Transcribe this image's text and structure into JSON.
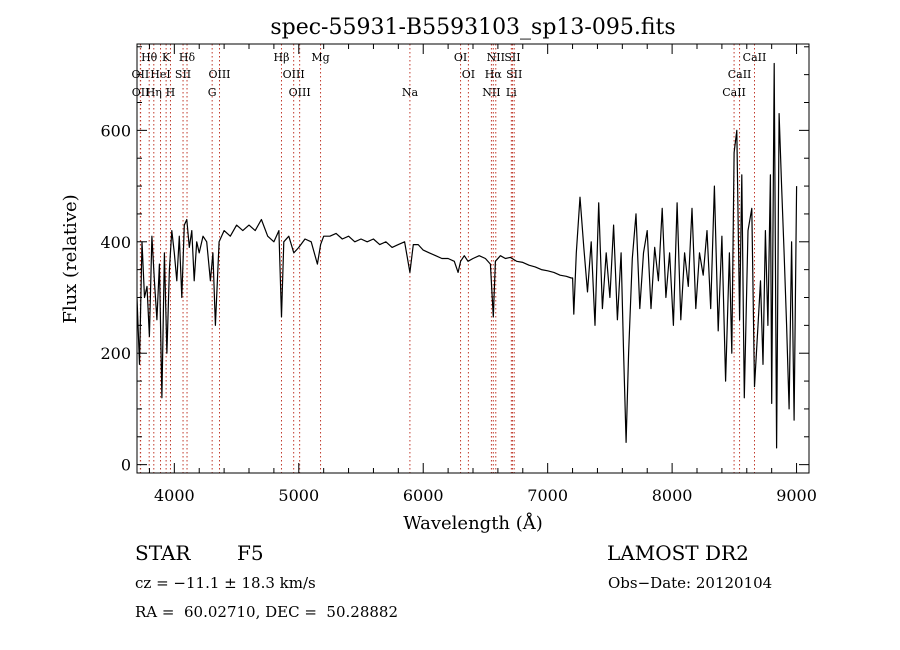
{
  "chart_data": {
    "type": "line",
    "title": "spec-55931-B5593103_sp13-095.fits",
    "xlabel": "Wavelength (Å)",
    "ylabel": "Flux (relative)",
    "xlim": [
      3700,
      9100
    ],
    "ylim": [
      -15,
      755
    ],
    "xticks": [
      4000,
      5000,
      6000,
      7000,
      8000,
      9000
    ],
    "yticks": [
      0,
      200,
      400,
      600
    ],
    "line_markers": [
      {
        "label": "Hθ",
        "wavelength": 3798,
        "row": 0
      },
      {
        "label": "K",
        "wavelength": 3934,
        "row": 0
      },
      {
        "label": "Hδ",
        "wavelength": 4102,
        "row": 0
      },
      {
        "label": "Hβ",
        "wavelength": 4861,
        "row": 0
      },
      {
        "label": "Mg",
        "wavelength": 5175,
        "row": 0
      },
      {
        "label": "OI",
        "wavelength": 6300,
        "row": 0
      },
      {
        "label": "NII",
        "wavelength": 6583,
        "row": 0
      },
      {
        "label": "SII",
        "wavelength": 6717,
        "row": 0
      },
      {
        "label": "CaII",
        "wavelength": 8662,
        "row": 0
      },
      {
        "label": "OII",
        "wavelength": 3727,
        "row": 1
      },
      {
        "label": "HeI",
        "wavelength": 3889,
        "row": 1
      },
      {
        "label": "SII",
        "wavelength": 4070,
        "row": 1
      },
      {
        "label": "OIII",
        "wavelength": 4363,
        "row": 1
      },
      {
        "label": "OIII",
        "wavelength": 4959,
        "row": 1
      },
      {
        "label": "OI",
        "wavelength": 6363,
        "row": 1
      },
      {
        "label": "Hα",
        "wavelength": 6563,
        "row": 1
      },
      {
        "label": "SII",
        "wavelength": 6731,
        "row": 1
      },
      {
        "label": "CaII",
        "wavelength": 8542,
        "row": 1
      },
      {
        "label": "OII",
        "wavelength": 3729,
        "row": 2
      },
      {
        "label": "Hη",
        "wavelength": 3835,
        "row": 2
      },
      {
        "label": "H",
        "wavelength": 3969,
        "row": 2
      },
      {
        "label": "G",
        "wavelength": 4304,
        "row": 2
      },
      {
        "label": "OIII",
        "wavelength": 5007,
        "row": 2
      },
      {
        "label": "Na",
        "wavelength": 5893,
        "row": 2
      },
      {
        "label": "NII",
        "wavelength": 6548,
        "row": 2
      },
      {
        "label": "Li",
        "wavelength": 6708,
        "row": 2
      },
      {
        "label": "CaII",
        "wavelength": 8498,
        "row": 2
      }
    ],
    "spectrum": {
      "x": [
        3700,
        3720,
        3740,
        3760,
        3780,
        3800,
        3820,
        3840,
        3860,
        3880,
        3900,
        3920,
        3940,
        3960,
        3980,
        4000,
        4020,
        4040,
        4060,
        4080,
        4100,
        4120,
        4140,
        4160,
        4180,
        4200,
        4230,
        4260,
        4290,
        4310,
        4330,
        4360,
        4400,
        4450,
        4500,
        4550,
        4600,
        4650,
        4700,
        4750,
        4800,
        4840,
        4861,
        4880,
        4920,
        4960,
        5000,
        5050,
        5100,
        5150,
        5175,
        5200,
        5250,
        5300,
        5350,
        5400,
        5450,
        5500,
        5550,
        5600,
        5650,
        5700,
        5750,
        5800,
        5850,
        5893,
        5920,
        5960,
        6000,
        6050,
        6100,
        6150,
        6200,
        6250,
        6280,
        6300,
        6330,
        6360,
        6400,
        6450,
        6500,
        6540,
        6563,
        6580,
        6620,
        6660,
        6700,
        6750,
        6800,
        6850,
        6900,
        6950,
        7000,
        7050,
        7100,
        7150,
        7190,
        7200,
        7210,
        7230,
        7260,
        7290,
        7320,
        7350,
        7380,
        7410,
        7440,
        7470,
        7500,
        7530,
        7560,
        7590,
        7610,
        7630,
        7650,
        7680,
        7710,
        7740,
        7770,
        7800,
        7830,
        7860,
        7890,
        7920,
        7950,
        7980,
        8010,
        8040,
        8070,
        8100,
        8130,
        8160,
        8190,
        8220,
        8250,
        8280,
        8310,
        8340,
        8370,
        8400,
        8430,
        8460,
        8480,
        8498,
        8520,
        8542,
        8560,
        8580,
        8610,
        8640,
        8662,
        8690,
        8710,
        8730,
        8750,
        8770,
        8790,
        8800,
        8820,
        8840,
        8860,
        8880,
        8900,
        8920,
        8940,
        8960,
        8980,
        9000
      ],
      "y": [
        300,
        180,
        400,
        300,
        320,
        230,
        410,
        330,
        260,
        360,
        120,
        380,
        200,
        350,
        420,
        380,
        330,
        410,
        300,
        430,
        440,
        390,
        420,
        330,
        400,
        380,
        410,
        400,
        330,
        380,
        250,
        400,
        420,
        410,
        430,
        420,
        430,
        420,
        440,
        410,
        400,
        420,
        265,
        400,
        410,
        380,
        390,
        405,
        400,
        360,
        395,
        410,
        410,
        415,
        405,
        410,
        400,
        405,
        400,
        405,
        395,
        400,
        390,
        395,
        400,
        345,
        395,
        395,
        385,
        380,
        375,
        370,
        370,
        365,
        345,
        365,
        375,
        365,
        370,
        375,
        370,
        360,
        265,
        365,
        375,
        370,
        372,
        365,
        363,
        358,
        355,
        350,
        348,
        345,
        340,
        338,
        335,
        335,
        270,
        380,
        480,
        390,
        310,
        400,
        250,
        470,
        280,
        380,
        300,
        430,
        260,
        380,
        200,
        40,
        200,
        370,
        450,
        280,
        380,
        420,
        280,
        390,
        330,
        460,
        300,
        380,
        250,
        470,
        260,
        380,
        320,
        460,
        280,
        380,
        340,
        420,
        280,
        500,
        240,
        410,
        150,
        380,
        200,
        560,
        600,
        260,
        520,
        120,
        420,
        460,
        140,
        250,
        330,
        180,
        420,
        250,
        520,
        110,
        720,
        30,
        630,
        500,
        380,
        250,
        100,
        400,
        80,
        500
      ]
    }
  },
  "info": {
    "object_class": "STAR",
    "subclass": "F5",
    "survey": "LAMOST DR2",
    "cz_line": "cz = −11.1 ± 18.3 km/s",
    "obs_date_line": "Obs−Date: 20120104",
    "radec_line": "RA =  60.02710, DEC =  50.28882"
  }
}
